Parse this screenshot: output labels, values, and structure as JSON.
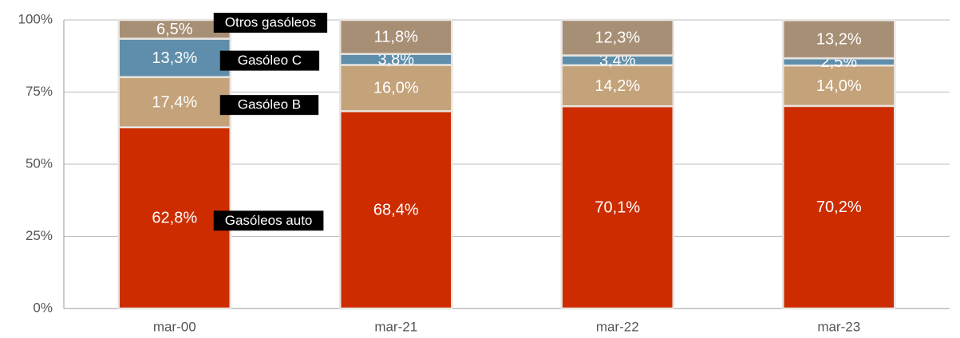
{
  "chart_data": {
    "type": "stacked_bar",
    "categories": [
      "mar-00",
      "mar-21",
      "mar-22",
      "mar-23"
    ],
    "series": [
      {
        "name": "Gasóleos auto",
        "color": "#cc2c00",
        "values": [
          62.8,
          68.4,
          70.1,
          70.2
        ],
        "value_labels": [
          "62,8%",
          "68,4%",
          "70,1%",
          "70,2%"
        ]
      },
      {
        "name": "Gasóleo B",
        "color": "#c4a27a",
        "values": [
          17.4,
          16.0,
          14.2,
          14.0
        ],
        "value_labels": [
          "17,4%",
          "16,0%",
          "14,2%",
          "14,0%"
        ]
      },
      {
        "name": "Gasóleo C",
        "color": "#5e8eab",
        "values": [
          13.3,
          3.8,
          3.4,
          2.5
        ],
        "value_labels": [
          "13,3%",
          "3,8%",
          "3,4%",
          "2,5%"
        ]
      },
      {
        "name": "Otros gasóleos",
        "color": "#a78f76",
        "values": [
          6.5,
          11.8,
          12.3,
          13.2
        ],
        "value_labels": [
          "6,5%",
          "11,8%",
          "12,3%",
          "13,2%"
        ]
      }
    ],
    "ylim": [
      0,
      100
    ],
    "yticks": [
      {
        "value": 0,
        "label": "0%"
      },
      {
        "value": 25,
        "label": "25%"
      },
      {
        "value": 50,
        "label": "50%"
      },
      {
        "value": 75,
        "label": "75%"
      },
      {
        "value": 100,
        "label": "100%"
      }
    ],
    "grid": true
  }
}
